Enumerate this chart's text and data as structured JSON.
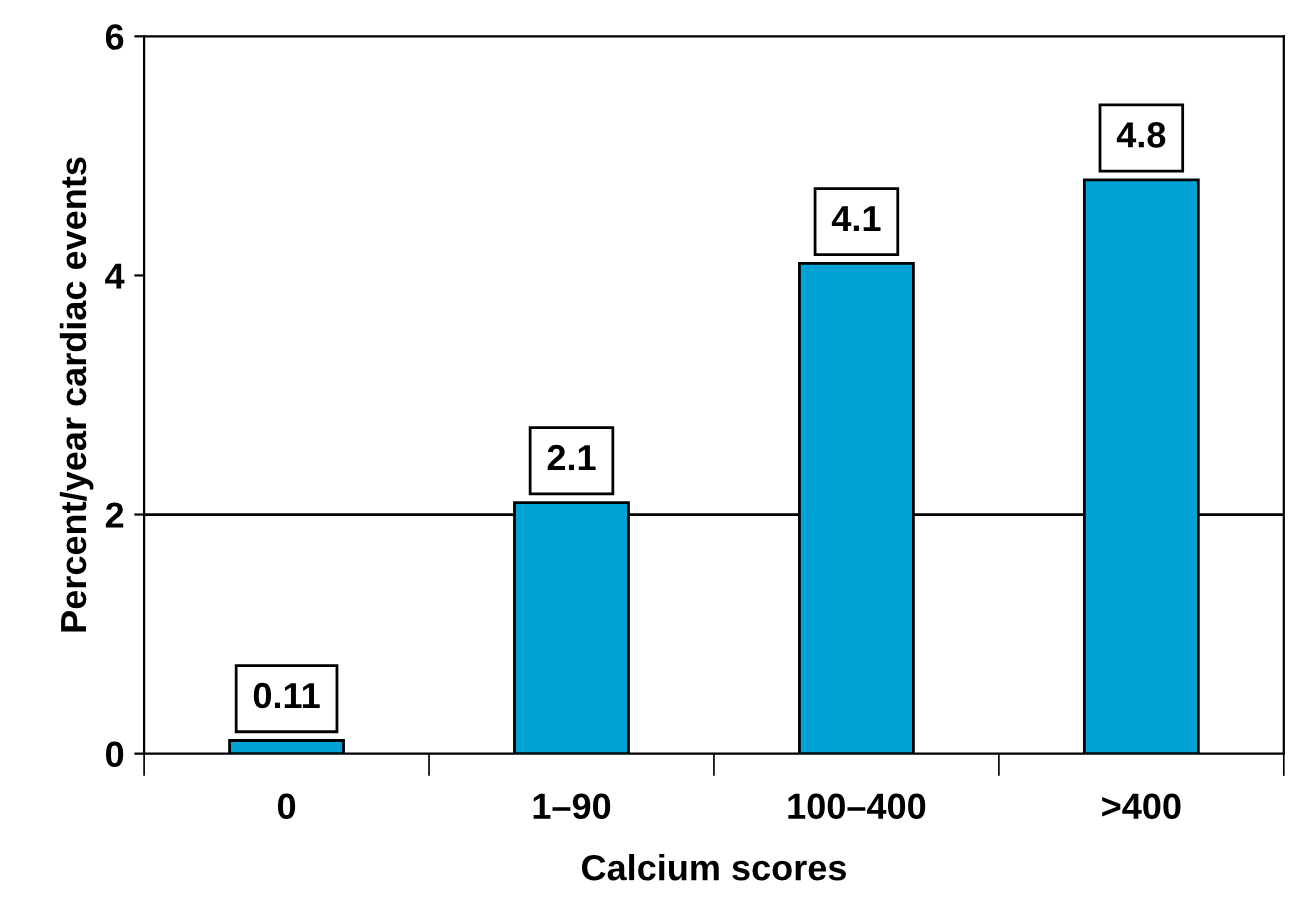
{
  "chart_data": {
    "type": "bar",
    "xlabel": "Calcium scores",
    "ylabel": "Percent/year cardiac events",
    "categories": [
      "0",
      "1–90",
      "100–400",
      ">400"
    ],
    "values": [
      0.11,
      2.1,
      4.1,
      4.8
    ],
    "color": "#00a3d4",
    "ylim": [
      0,
      6
    ],
    "yticks": [
      0,
      2,
      4,
      6
    ],
    "grid": false,
    "data_labels": true,
    "ref_lines": [
      {
        "axis": "y",
        "value": 2,
        "color": "#000000"
      }
    ]
  }
}
